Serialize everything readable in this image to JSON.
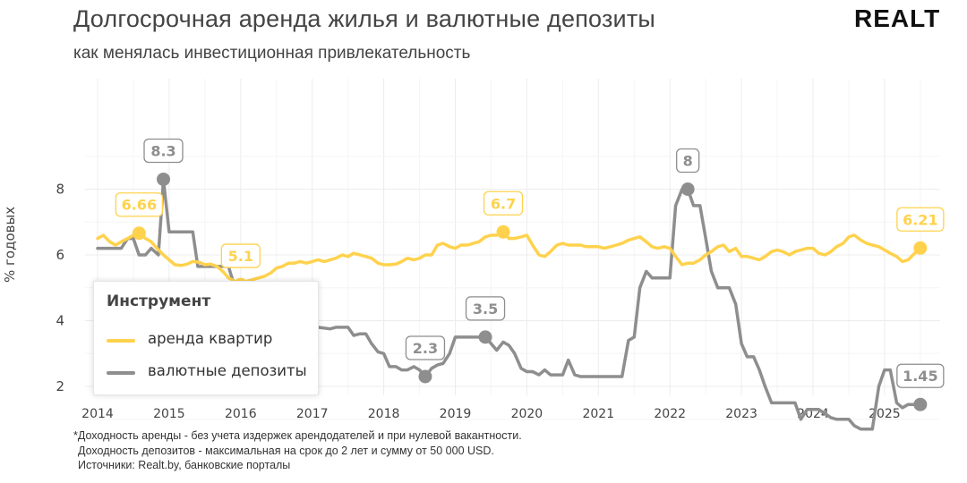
{
  "header": {
    "title": "Долгосрочная аренда жилья и валютные депозиты",
    "subtitle": "как менялась инвестиционная привлекательность",
    "logo_text": "REALT"
  },
  "footnotes": [
    "*Доходность аренды - без учета издержек арендодателей и при нулевой вакантности.",
    "Доходность депозитов - максимальная на срок до 2 лет и сумму от 50  000 USD.",
    "Источники: Realt.by, банковские порталы"
  ],
  "legend": {
    "title": "Инструмент",
    "items": [
      {
        "label": "аренда квартир",
        "color": "#FFD24D"
      },
      {
        "label": "валютные депозиты",
        "color": "#8E8E8E"
      }
    ]
  },
  "chart_data": {
    "type": "line",
    "title": "Долгосрочная аренда жилья и валютные депозиты",
    "subtitle": "как менялась инвестиционная привлекательность",
    "xlabel": "",
    "ylabel": "% годовых",
    "xlim": [
      2014.0,
      2025.75
    ],
    "ylim": [
      0,
      9.6
    ],
    "x_ticks": [
      2014,
      2015,
      2016,
      2017,
      2018,
      2019,
      2020,
      2021,
      2022,
      2023,
      2024,
      2025
    ],
    "y_ticks": [
      2,
      4,
      6,
      8
    ],
    "grid": true,
    "legend_position": "bottom-left",
    "series": [
      {
        "name": "аренда квартир",
        "color": "#FFD24D",
        "points": [
          [
            2014.0,
            6.5
          ],
          [
            2014.08,
            6.6
          ],
          [
            2014.17,
            6.4
          ],
          [
            2014.25,
            6.3
          ],
          [
            2014.33,
            6.4
          ],
          [
            2014.42,
            6.5
          ],
          [
            2014.5,
            6.6
          ],
          [
            2014.58,
            6.66
          ],
          [
            2014.67,
            6.5
          ],
          [
            2014.75,
            6.4
          ],
          [
            2014.83,
            6.2
          ],
          [
            2014.92,
            6.0
          ],
          [
            2015.0,
            5.85
          ],
          [
            2015.08,
            5.7
          ],
          [
            2015.17,
            5.68
          ],
          [
            2015.25,
            5.72
          ],
          [
            2015.33,
            5.8
          ],
          [
            2015.42,
            5.78
          ],
          [
            2015.5,
            5.7
          ],
          [
            2015.58,
            5.72
          ],
          [
            2015.67,
            5.65
          ],
          [
            2015.75,
            5.5
          ],
          [
            2015.83,
            5.3
          ],
          [
            2015.92,
            5.2
          ],
          [
            2016.0,
            5.1
          ],
          [
            2016.08,
            5.2
          ],
          [
            2016.17,
            5.25
          ],
          [
            2016.25,
            5.3
          ],
          [
            2016.33,
            5.35
          ],
          [
            2016.42,
            5.45
          ],
          [
            2016.5,
            5.6
          ],
          [
            2016.58,
            5.65
          ],
          [
            2016.67,
            5.75
          ],
          [
            2016.75,
            5.75
          ],
          [
            2016.83,
            5.8
          ],
          [
            2016.92,
            5.75
          ],
          [
            2017.0,
            5.8
          ],
          [
            2017.08,
            5.85
          ],
          [
            2017.17,
            5.8
          ],
          [
            2017.25,
            5.85
          ],
          [
            2017.33,
            5.9
          ],
          [
            2017.42,
            6.0
          ],
          [
            2017.5,
            5.95
          ],
          [
            2017.58,
            6.05
          ],
          [
            2017.67,
            6.0
          ],
          [
            2017.75,
            5.95
          ],
          [
            2017.83,
            5.9
          ],
          [
            2017.92,
            5.75
          ],
          [
            2018.0,
            5.7
          ],
          [
            2018.08,
            5.7
          ],
          [
            2018.17,
            5.72
          ],
          [
            2018.25,
            5.8
          ],
          [
            2018.33,
            5.9
          ],
          [
            2018.42,
            5.85
          ],
          [
            2018.5,
            5.9
          ],
          [
            2018.58,
            6.0
          ],
          [
            2018.67,
            6.0
          ],
          [
            2018.75,
            6.3
          ],
          [
            2018.83,
            6.35
          ],
          [
            2018.92,
            6.25
          ],
          [
            2019.0,
            6.2
          ],
          [
            2019.08,
            6.3
          ],
          [
            2019.17,
            6.3
          ],
          [
            2019.25,
            6.35
          ],
          [
            2019.33,
            6.4
          ],
          [
            2019.42,
            6.55
          ],
          [
            2019.5,
            6.6
          ],
          [
            2019.58,
            6.6
          ],
          [
            2019.67,
            6.7
          ],
          [
            2019.75,
            6.5
          ],
          [
            2019.83,
            6.5
          ],
          [
            2019.92,
            6.55
          ],
          [
            2020.0,
            6.6
          ],
          [
            2020.08,
            6.3
          ],
          [
            2020.17,
            6.0
          ],
          [
            2020.25,
            5.95
          ],
          [
            2020.33,
            6.1
          ],
          [
            2020.42,
            6.3
          ],
          [
            2020.5,
            6.35
          ],
          [
            2020.58,
            6.3
          ],
          [
            2020.67,
            6.3
          ],
          [
            2020.75,
            6.3
          ],
          [
            2020.83,
            6.25
          ],
          [
            2020.92,
            6.25
          ],
          [
            2021.0,
            6.25
          ],
          [
            2021.08,
            6.2
          ],
          [
            2021.17,
            6.25
          ],
          [
            2021.25,
            6.3
          ],
          [
            2021.33,
            6.35
          ],
          [
            2021.42,
            6.45
          ],
          [
            2021.5,
            6.5
          ],
          [
            2021.58,
            6.55
          ],
          [
            2021.67,
            6.4
          ],
          [
            2021.75,
            6.25
          ],
          [
            2021.83,
            6.2
          ],
          [
            2021.92,
            6.25
          ],
          [
            2022.0,
            6.2
          ],
          [
            2022.08,
            5.95
          ],
          [
            2022.17,
            5.7
          ],
          [
            2022.25,
            5.75
          ],
          [
            2022.33,
            5.75
          ],
          [
            2022.42,
            5.85
          ],
          [
            2022.5,
            6.0
          ],
          [
            2022.58,
            6.1
          ],
          [
            2022.67,
            6.25
          ],
          [
            2022.75,
            6.3
          ],
          [
            2022.83,
            6.1
          ],
          [
            2022.92,
            6.2
          ],
          [
            2023.0,
            5.95
          ],
          [
            2023.08,
            5.95
          ],
          [
            2023.17,
            5.9
          ],
          [
            2023.25,
            5.85
          ],
          [
            2023.33,
            5.95
          ],
          [
            2023.42,
            6.1
          ],
          [
            2023.5,
            6.15
          ],
          [
            2023.58,
            6.1
          ],
          [
            2023.67,
            6.0
          ],
          [
            2023.75,
            6.1
          ],
          [
            2023.83,
            6.15
          ],
          [
            2023.92,
            6.2
          ],
          [
            2024.0,
            6.2
          ],
          [
            2024.08,
            6.05
          ],
          [
            2024.17,
            6.0
          ],
          [
            2024.25,
            6.1
          ],
          [
            2024.33,
            6.25
          ],
          [
            2024.42,
            6.35
          ],
          [
            2024.5,
            6.55
          ],
          [
            2024.58,
            6.6
          ],
          [
            2024.67,
            6.45
          ],
          [
            2024.75,
            6.35
          ],
          [
            2024.83,
            6.3
          ],
          [
            2024.92,
            6.25
          ],
          [
            2025.0,
            6.15
          ],
          [
            2025.08,
            6.05
          ],
          [
            2025.17,
            5.95
          ],
          [
            2025.25,
            5.8
          ],
          [
            2025.33,
            5.85
          ],
          [
            2025.42,
            6.05
          ],
          [
            2025.5,
            6.21
          ]
        ],
        "annotations": [
          [
            2014.58,
            6.66,
            "6.66"
          ],
          [
            2016.0,
            5.1,
            "5.1"
          ],
          [
            2019.67,
            6.7,
            "6.7"
          ],
          [
            2025.5,
            6.21,
            "6.21"
          ]
        ]
      },
      {
        "name": "валютные депозиты",
        "color": "#8E8E8E",
        "points": [
          [
            2014.0,
            6.2
          ],
          [
            2014.33,
            6.2
          ],
          [
            2014.42,
            6.5
          ],
          [
            2014.5,
            6.5
          ],
          [
            2014.58,
            6.0
          ],
          [
            2014.67,
            6.0
          ],
          [
            2014.75,
            6.2
          ],
          [
            2014.85,
            6.0
          ],
          [
            2014.9,
            7.6
          ],
          [
            2014.92,
            8.3
          ],
          [
            2014.96,
            7.5
          ],
          [
            2015.0,
            6.7
          ],
          [
            2015.33,
            6.7
          ],
          [
            2015.4,
            5.65
          ],
          [
            2015.83,
            5.65
          ],
          [
            2015.92,
            5.0
          ],
          [
            2016.08,
            5.0
          ],
          [
            2016.12,
            5.1
          ],
          [
            2016.5,
            5.1
          ],
          [
            2016.58,
            4.6
          ],
          [
            2016.67,
            4.6
          ],
          [
            2016.75,
            4.1
          ],
          [
            2017.0,
            4.1
          ],
          [
            2017.08,
            3.8
          ],
          [
            2017.25,
            3.75
          ],
          [
            2017.33,
            3.8
          ],
          [
            2017.5,
            3.8
          ],
          [
            2017.58,
            3.55
          ],
          [
            2017.67,
            3.6
          ],
          [
            2017.75,
            3.6
          ],
          [
            2017.83,
            3.3
          ],
          [
            2017.92,
            3.05
          ],
          [
            2018.0,
            3.0
          ],
          [
            2018.08,
            2.6
          ],
          [
            2018.17,
            2.6
          ],
          [
            2018.25,
            2.5
          ],
          [
            2018.33,
            2.5
          ],
          [
            2018.42,
            2.6
          ],
          [
            2018.5,
            2.5
          ],
          [
            2018.58,
            2.3
          ],
          [
            2018.67,
            2.55
          ],
          [
            2018.75,
            2.65
          ],
          [
            2018.83,
            2.7
          ],
          [
            2018.92,
            3.0
          ],
          [
            2019.0,
            3.5
          ],
          [
            2019.42,
            3.5
          ],
          [
            2019.5,
            3.3
          ],
          [
            2019.58,
            3.1
          ],
          [
            2019.67,
            3.35
          ],
          [
            2019.75,
            3.25
          ],
          [
            2019.83,
            3.0
          ],
          [
            2019.92,
            2.55
          ],
          [
            2020.0,
            2.45
          ],
          [
            2020.08,
            2.45
          ],
          [
            2020.17,
            2.35
          ],
          [
            2020.25,
            2.5
          ],
          [
            2020.33,
            2.35
          ],
          [
            2020.42,
            2.35
          ],
          [
            2020.5,
            2.35
          ],
          [
            2020.58,
            2.8
          ],
          [
            2020.67,
            2.35
          ],
          [
            2020.75,
            2.3
          ],
          [
            2021.33,
            2.3
          ],
          [
            2021.42,
            3.4
          ],
          [
            2021.5,
            3.5
          ],
          [
            2021.58,
            5.0
          ],
          [
            2021.67,
            5.5
          ],
          [
            2021.75,
            5.3
          ],
          [
            2022.0,
            5.3
          ],
          [
            2022.08,
            7.5
          ],
          [
            2022.17,
            8.0
          ],
          [
            2022.25,
            8.0
          ],
          [
            2022.33,
            7.5
          ],
          [
            2022.42,
            7.5
          ],
          [
            2022.5,
            6.5
          ],
          [
            2022.58,
            5.5
          ],
          [
            2022.67,
            5.0
          ],
          [
            2022.83,
            5.0
          ],
          [
            2022.92,
            4.5
          ],
          [
            2023.0,
            3.3
          ],
          [
            2023.08,
            2.9
          ],
          [
            2023.17,
            2.9
          ],
          [
            2023.25,
            2.5
          ],
          [
            2023.33,
            2.0
          ],
          [
            2023.42,
            1.5
          ],
          [
            2023.58,
            1.5
          ],
          [
            2023.75,
            1.5
          ],
          [
            2023.83,
            1.0
          ],
          [
            2023.92,
            1.3
          ],
          [
            2024.08,
            1.3
          ],
          [
            2024.25,
            1.05
          ],
          [
            2024.33,
            1.0
          ],
          [
            2024.5,
            1.0
          ],
          [
            2024.58,
            0.8
          ],
          [
            2024.67,
            0.7
          ],
          [
            2024.83,
            0.7
          ],
          [
            2024.92,
            2.0
          ],
          [
            2025.0,
            2.5
          ],
          [
            2025.08,
            2.5
          ],
          [
            2025.17,
            1.5
          ],
          [
            2025.25,
            1.35
          ],
          [
            2025.33,
            1.45
          ],
          [
            2025.5,
            1.45
          ]
        ],
        "annotations": [
          [
            2014.92,
            8.3,
            "8.3"
          ],
          [
            2018.58,
            2.3,
            "2.3"
          ],
          [
            2019.42,
            3.5,
            "3.5"
          ],
          [
            2022.25,
            8.0,
            "8"
          ],
          [
            2025.5,
            1.45,
            "1.45"
          ]
        ]
      }
    ]
  }
}
